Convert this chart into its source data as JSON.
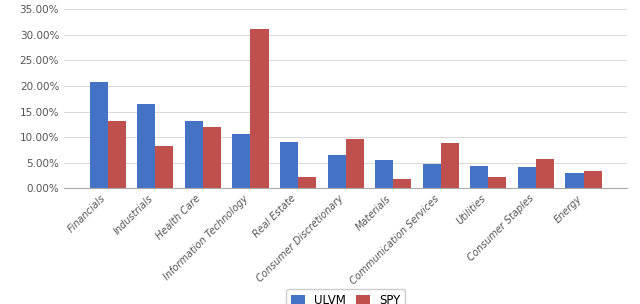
{
  "categories": [
    "Financials",
    "Industrials",
    "Health Care",
    "Information Technology",
    "Real Estate",
    "Consumer Discretionary",
    "Materials",
    "Communication Services",
    "Utilities",
    "Consumer Staples",
    "Energy"
  ],
  "ulvm": [
    0.208,
    0.165,
    0.132,
    0.106,
    0.091,
    0.065,
    0.056,
    0.047,
    0.044,
    0.042,
    0.031
  ],
  "spy": [
    0.131,
    0.082,
    0.12,
    0.311,
    0.022,
    0.096,
    0.019,
    0.088,
    0.022,
    0.058,
    0.034
  ],
  "ulvm_color": "#4472C4",
  "spy_color": "#C0504D",
  "background_color": "#FFFFFF",
  "plot_area_color": "#FFFFFF",
  "ylim": [
    0,
    0.35
  ],
  "yticks": [
    0.0,
    0.05,
    0.1,
    0.15,
    0.2,
    0.25,
    0.3,
    0.35
  ],
  "legend_labels": [
    "ULVM",
    "SPY"
  ],
  "bar_width": 0.38,
  "grid_color": "#D9D9D9",
  "title": ""
}
